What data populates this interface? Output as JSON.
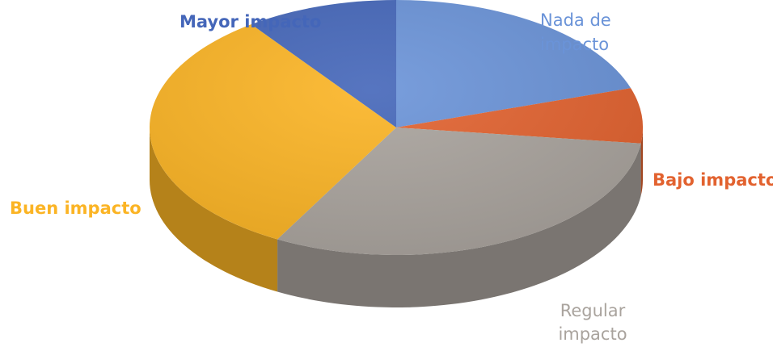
{
  "chart_data": {
    "type": "pie",
    "style": "3d",
    "title": "",
    "legend": "none",
    "slices": [
      {
        "label": [
          "Nada de",
          "impacto"
        ],
        "value": 20,
        "color": "#6a93d8"
      },
      {
        "label": [
          "Bajo impacto"
        ],
        "value": 7,
        "color": "#e2622f"
      },
      {
        "label": [
          "Regular",
          "impacto"
        ],
        "value": 31,
        "color": "#a9a39d"
      },
      {
        "label": [
          "Buen impacto"
        ],
        "value": 32,
        "color": "#fbb424"
      },
      {
        "label": [
          "Mayor impacto"
        ],
        "value": 10,
        "color": "#4466b9"
      }
    ]
  }
}
